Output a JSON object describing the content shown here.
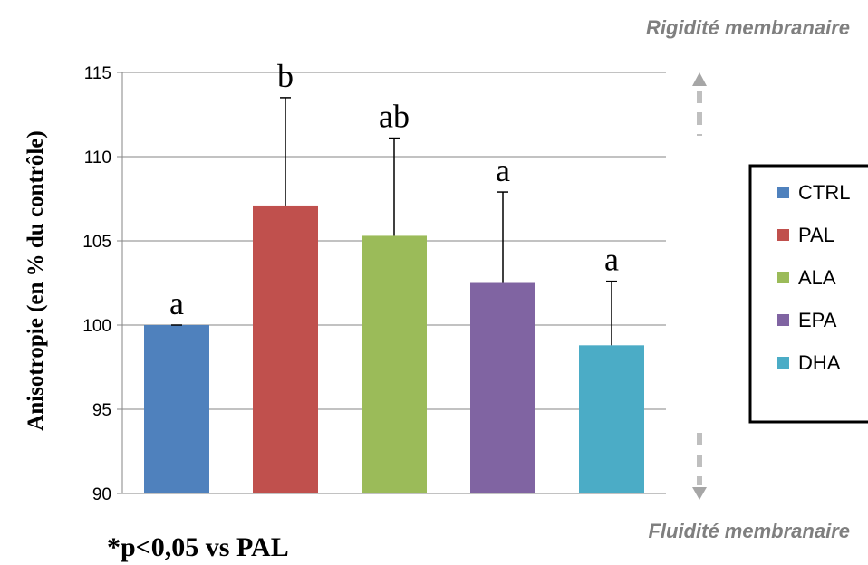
{
  "chart_data": {
    "type": "bar",
    "categories": [
      "CTRL",
      "PAL",
      "ALA",
      "EPA",
      "DHA"
    ],
    "values": [
      100,
      107.1,
      105.3,
      102.5,
      98.8
    ],
    "error_bars": [
      0,
      6.4,
      5.8,
      5.4,
      3.8
    ],
    "significance_letters": [
      "a",
      "b",
      "ab",
      "a",
      "a"
    ],
    "colors": [
      "#4f81bd",
      "#c0504d",
      "#9bbb59",
      "#8064a2",
      "#4bacc6"
    ],
    "ylabel": "Anisotropie (en % du contrôle)",
    "ylim": [
      90,
      115
    ],
    "yticks": [
      90,
      95,
      100,
      105,
      110,
      115
    ],
    "grid": true,
    "legend": {
      "placement": "right",
      "entries": [
        "CTRL",
        "PAL",
        "ALA",
        "EPA",
        "DHA"
      ]
    },
    "annotations": {
      "top": "Rigidité membranaire",
      "bottom": "Fluidité membranaire",
      "note": "*p<0,05 vs PAL"
    }
  }
}
